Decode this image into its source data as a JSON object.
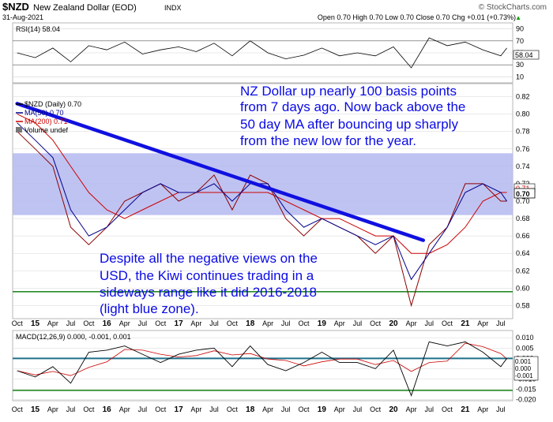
{
  "header": {
    "symbol": "$NZD",
    "name": "New Zealand Dollar (EOD)",
    "exchange": "INDX",
    "date": "31-Aug-2021",
    "watermark": "© StockCharts.com",
    "ohlc": "Open 0.70  High 0.70  Low 0.70  Close 0.70  Chg +0.01 (+0.73%)",
    "ohlc_triangle": "▲"
  },
  "rsi_panel": {
    "label": "RSI(14) 58.04",
    "last_value_label": "58.04",
    "ticks": [
      90,
      70,
      50,
      30,
      10
    ],
    "overbought": 70,
    "oversold": 30
  },
  "price_panel": {
    "legend": {
      "line1": "$NZD (Daily) 0.70",
      "line2": "MA(50) 0.70",
      "line3": "MA(200) 0.71",
      "line4": "Volume undef"
    },
    "y_ticks": [
      0.82,
      0.8,
      0.78,
      0.76,
      0.74,
      0.72,
      0.7,
      0.68,
      0.66,
      0.64,
      0.62,
      0.6,
      0.58
    ],
    "last_labels": [
      "0.71",
      "0.70"
    ],
    "annotation_top": [
      "NZ Dollar up nearly 100 basis points",
      "from 7 days ago. Now back above the",
      "50 day MA after bouncing up sharply",
      "from the new low for the year."
    ],
    "annotation_bottom": [
      "Despite all the negative views on the",
      "USD, the Kiwi continues trading in a",
      "sideways range like it did 2016-2018",
      "(light blue zone)."
    ]
  },
  "x_axis": {
    "labels": [
      "Oct",
      "15",
      "Apr",
      "Jul",
      "Oct",
      "16",
      "Apr",
      "Jul",
      "Oct",
      "17",
      "Apr",
      "Jul",
      "Oct",
      "18",
      "Apr",
      "Jul",
      "Oct",
      "19",
      "Apr",
      "Jul",
      "Oct",
      "20",
      "Apr",
      "Jul",
      "Oct",
      "21",
      "Apr",
      "Jul"
    ]
  },
  "macd_panel": {
    "label": "MACD(12,26,9) 0.000, -0.001, 0.001",
    "ticks": [
      "0.010",
      "0.005",
      "0.000",
      "-0.005",
      "-0.010",
      "-0.015",
      "-0.020"
    ],
    "last_labels": [
      "0.001",
      "0.000",
      "-0.001"
    ]
  },
  "colors": {
    "price": "#8b0000",
    "ma50": "#00008b",
    "ma200": "#cc0000",
    "trendline": "#1010e0",
    "range_zone": "#b4b8f0",
    "support": "#007700",
    "annotation": "#0a0ae6"
  },
  "chart_data": {
    "type": "line",
    "title": "$NZD New Zealand Dollar (EOD) INDX",
    "x": [
      "2014-10",
      "2015-01",
      "2015-04",
      "2015-07",
      "2015-10",
      "2016-01",
      "2016-04",
      "2016-07",
      "2016-10",
      "2017-01",
      "2017-04",
      "2017-07",
      "2017-10",
      "2018-01",
      "2018-04",
      "2018-07",
      "2018-10",
      "2019-01",
      "2019-04",
      "2019-07",
      "2019-10",
      "2020-01",
      "2020-04",
      "2020-07",
      "2020-10",
      "2021-01",
      "2021-04",
      "2021-07",
      "2021-08"
    ],
    "series": [
      {
        "name": "$NZD (Daily) 0.70",
        "values": [
          0.78,
          0.76,
          0.74,
          0.67,
          0.65,
          0.67,
          0.7,
          0.71,
          0.72,
          0.7,
          0.71,
          0.73,
          0.69,
          0.73,
          0.72,
          0.68,
          0.66,
          0.68,
          0.67,
          0.66,
          0.64,
          0.66,
          0.58,
          0.65,
          0.67,
          0.72,
          0.72,
          0.7,
          0.7
        ]
      },
      {
        "name": "MA(50) 0.70",
        "values": [
          0.79,
          0.77,
          0.75,
          0.69,
          0.66,
          0.67,
          0.69,
          0.71,
          0.72,
          0.71,
          0.71,
          0.72,
          0.7,
          0.72,
          0.72,
          0.69,
          0.67,
          0.68,
          0.67,
          0.66,
          0.65,
          0.66,
          0.61,
          0.64,
          0.67,
          0.71,
          0.72,
          0.71,
          0.7
        ]
      },
      {
        "name": "MA(200) 0.71",
        "values": [
          0.8,
          0.79,
          0.77,
          0.74,
          0.71,
          0.69,
          0.68,
          0.69,
          0.7,
          0.71,
          0.71,
          0.71,
          0.71,
          0.71,
          0.71,
          0.7,
          0.69,
          0.68,
          0.68,
          0.67,
          0.66,
          0.66,
          0.64,
          0.64,
          0.65,
          0.67,
          0.7,
          0.71,
          0.71
        ]
      }
    ],
    "rsi_14": [
      50,
      42,
      58,
      35,
      62,
      55,
      68,
      48,
      55,
      60,
      52,
      66,
      45,
      70,
      50,
      40,
      46,
      58,
      45,
      50,
      45,
      60,
      25,
      75,
      62,
      68,
      55,
      45,
      58
    ],
    "macd": [
      -0.006,
      -0.009,
      -0.004,
      -0.012,
      0.003,
      0.004,
      0.006,
      0.002,
      -0.002,
      0.002,
      0.004,
      0.005,
      -0.004,
      0.006,
      -0.003,
      -0.006,
      -0.002,
      0.003,
      -0.002,
      -0.002,
      -0.005,
      0.004,
      -0.018,
      0.008,
      0.006,
      0.008,
      0.003,
      -0.004,
      0.0
    ],
    "range_zone": [
      0.684,
      0.755
    ],
    "support_level": 0.596,
    "trendline": [
      {
        "x": "2014-10",
        "y": 0.812
      },
      {
        "x": "2020-06",
        "y": 0.655
      }
    ],
    "ylim": [
      0.565,
      0.835
    ],
    "xlabel": "",
    "ylabel": ""
  }
}
